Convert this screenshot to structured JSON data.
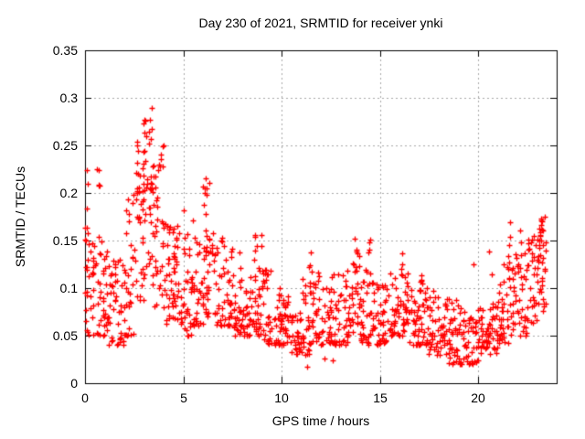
{
  "figure": {
    "background": "#ffffff"
  },
  "colors": {
    "marker": "#ff0000",
    "axis": "#000000",
    "grid": "#a8a8a8",
    "text": "#000000",
    "background": "#ffffff"
  },
  "chart_data": {
    "type": "scatter",
    "title": "Day 230 of 2021, SRMTID for receiver ynki",
    "xlabel": "GPS time / hours",
    "ylabel": "SRMTID / TECUs",
    "xlim": [
      0,
      24
    ],
    "ylim": [
      0,
      0.35
    ],
    "xticks": [
      0,
      5,
      10,
      15,
      20
    ],
    "xtick_labels": [
      "0",
      "5",
      "10",
      "15",
      "20"
    ],
    "yticks": [
      0,
      0.05,
      0.1,
      0.15,
      0.2,
      0.25,
      0.3,
      0.35
    ],
    "ytick_labels": [
      "0",
      "0.05",
      "0.1",
      "0.15",
      "0.2",
      "0.25",
      "0.3",
      "0.35"
    ],
    "grid": true,
    "grid_style": "dotted",
    "legend": "none",
    "marker": {
      "shape": "plus",
      "size": 7,
      "color": "#ff0000"
    },
    "series_name": "SRMTID",
    "points_total_approx": 1450,
    "y_peak": 0.31,
    "y_peak_time": 3.0,
    "envelope_bins_format": "[t_start_hours, t_end_hours, n_points, y_min_TECUs, y_max_TECUs, skew_exponent]",
    "envelope_bins": [
      [
        0.0,
        0.5,
        28,
        0.05,
        0.17,
        1.6
      ],
      [
        0.5,
        1.0,
        28,
        0.05,
        0.16,
        1.6
      ],
      [
        1.0,
        1.5,
        28,
        0.04,
        0.14,
        1.6
      ],
      [
        1.5,
        2.0,
        28,
        0.04,
        0.13,
        1.5
      ],
      [
        2.0,
        2.5,
        28,
        0.05,
        0.2,
        1.5
      ],
      [
        2.5,
        3.0,
        30,
        0.08,
        0.27,
        1.2
      ],
      [
        3.0,
        3.5,
        30,
        0.1,
        0.29,
        1.15
      ],
      [
        3.5,
        4.0,
        30,
        0.08,
        0.26,
        1.4
      ],
      [
        4.0,
        4.5,
        28,
        0.06,
        0.17,
        1.5
      ],
      [
        4.5,
        5.0,
        28,
        0.06,
        0.17,
        1.5
      ],
      [
        5.0,
        5.5,
        28,
        0.05,
        0.18,
        1.6
      ],
      [
        5.5,
        6.0,
        28,
        0.06,
        0.17,
        1.5
      ],
      [
        6.0,
        6.5,
        30,
        0.07,
        0.22,
        1.4
      ],
      [
        6.5,
        7.0,
        28,
        0.06,
        0.16,
        1.6
      ],
      [
        7.0,
        7.5,
        28,
        0.06,
        0.15,
        1.6
      ],
      [
        7.5,
        8.0,
        28,
        0.05,
        0.14,
        1.6
      ],
      [
        8.0,
        8.5,
        28,
        0.05,
        0.12,
        1.6
      ],
      [
        8.5,
        9.0,
        28,
        0.05,
        0.16,
        1.6
      ],
      [
        9.0,
        9.5,
        28,
        0.04,
        0.13,
        1.7
      ],
      [
        9.5,
        10.0,
        28,
        0.04,
        0.1,
        1.6
      ],
      [
        10.0,
        10.5,
        28,
        0.04,
        0.1,
        1.6
      ],
      [
        10.5,
        11.0,
        28,
        0.03,
        0.09,
        1.6
      ],
      [
        11.0,
        11.5,
        28,
        0.03,
        0.11,
        1.6
      ],
      [
        11.5,
        12.0,
        28,
        0.04,
        0.12,
        1.6
      ],
      [
        12.0,
        12.5,
        28,
        0.04,
        0.1,
        1.6
      ],
      [
        12.5,
        13.0,
        28,
        0.04,
        0.12,
        1.6
      ],
      [
        13.0,
        13.5,
        28,
        0.04,
        0.12,
        1.6
      ],
      [
        13.5,
        14.0,
        28,
        0.05,
        0.155,
        1.5
      ],
      [
        14.0,
        14.5,
        28,
        0.04,
        0.13,
        1.6
      ],
      [
        14.5,
        15.0,
        28,
        0.04,
        0.11,
        1.6
      ],
      [
        15.0,
        15.5,
        28,
        0.04,
        0.11,
        1.6
      ],
      [
        15.5,
        16.0,
        28,
        0.05,
        0.12,
        1.6
      ],
      [
        16.0,
        16.5,
        28,
        0.05,
        0.13,
        1.6
      ],
      [
        16.5,
        17.0,
        28,
        0.04,
        0.1,
        1.6
      ],
      [
        17.0,
        17.5,
        28,
        0.04,
        0.11,
        1.6
      ],
      [
        17.5,
        18.0,
        28,
        0.03,
        0.1,
        1.6
      ],
      [
        18.0,
        18.5,
        28,
        0.03,
        0.09,
        1.5
      ],
      [
        18.5,
        19.0,
        28,
        0.02,
        0.09,
        1.5
      ],
      [
        19.0,
        19.5,
        28,
        0.02,
        0.08,
        1.5
      ],
      [
        19.5,
        20.0,
        28,
        0.02,
        0.07,
        1.4
      ],
      [
        20.0,
        20.5,
        28,
        0.03,
        0.08,
        1.4
      ],
      [
        20.5,
        21.0,
        28,
        0.03,
        0.1,
        1.5
      ],
      [
        21.0,
        21.5,
        28,
        0.04,
        0.12,
        1.5
      ],
      [
        21.5,
        22.0,
        28,
        0.04,
        0.14,
        1.4
      ],
      [
        22.0,
        22.5,
        28,
        0.05,
        0.14,
        1.3
      ],
      [
        22.5,
        23.0,
        28,
        0.06,
        0.16,
        1.15
      ],
      [
        23.0,
        23.45,
        30,
        0.07,
        0.18,
        1.0
      ]
    ],
    "spikes_format": "[t_hours, n_points, y_min_TECUs, y_max_TECUs]",
    "spikes": [
      [
        0.05,
        5,
        0.09,
        0.16
      ],
      [
        0.12,
        4,
        0.12,
        0.23
      ],
      [
        0.7,
        4,
        0.19,
        0.225
      ],
      [
        2.45,
        4,
        0.13,
        0.2
      ],
      [
        2.75,
        5,
        0.13,
        0.25
      ],
      [
        2.95,
        6,
        0.18,
        0.3
      ],
      [
        3.05,
        6,
        0.2,
        0.31
      ],
      [
        3.3,
        4,
        0.15,
        0.26
      ],
      [
        3.55,
        4,
        0.14,
        0.27
      ],
      [
        3.95,
        3,
        0.14,
        0.19
      ],
      [
        4.65,
        4,
        0.12,
        0.17
      ],
      [
        5.08,
        5,
        0.13,
        0.21
      ],
      [
        6.15,
        6,
        0.13,
        0.235
      ],
      [
        6.35,
        4,
        0.12,
        0.22
      ],
      [
        7.9,
        3,
        0.1,
        0.14
      ],
      [
        8.7,
        4,
        0.11,
        0.16
      ],
      [
        9.25,
        3,
        0.1,
        0.13
      ],
      [
        11.45,
        3,
        0.11,
        0.148
      ],
      [
        13.3,
        3,
        0.1,
        0.129
      ],
      [
        13.8,
        3,
        0.11,
        0.155
      ],
      [
        14.45,
        4,
        0.11,
        0.152
      ],
      [
        16.1,
        4,
        0.11,
        0.145
      ],
      [
        17.1,
        3,
        0.1,
        0.127
      ],
      [
        21.6,
        4,
        0.12,
        0.17
      ],
      [
        22.15,
        4,
        0.12,
        0.165
      ],
      [
        23.15,
        6,
        0.12,
        0.177
      ],
      [
        23.3,
        5,
        0.1,
        0.17
      ]
    ],
    "outliers_format": "[t_hours, y_TECUs]",
    "outliers": [
      [
        0.6,
        0.225
      ],
      [
        11.3,
        0.017
      ],
      [
        12.2,
        0.026
      ],
      [
        12.6,
        0.024
      ],
      [
        20.55,
        0.138
      ],
      [
        20.7,
        0.114
      ],
      [
        19.77,
        0.125
      ],
      [
        21.3,
        0.125
      ]
    ]
  }
}
